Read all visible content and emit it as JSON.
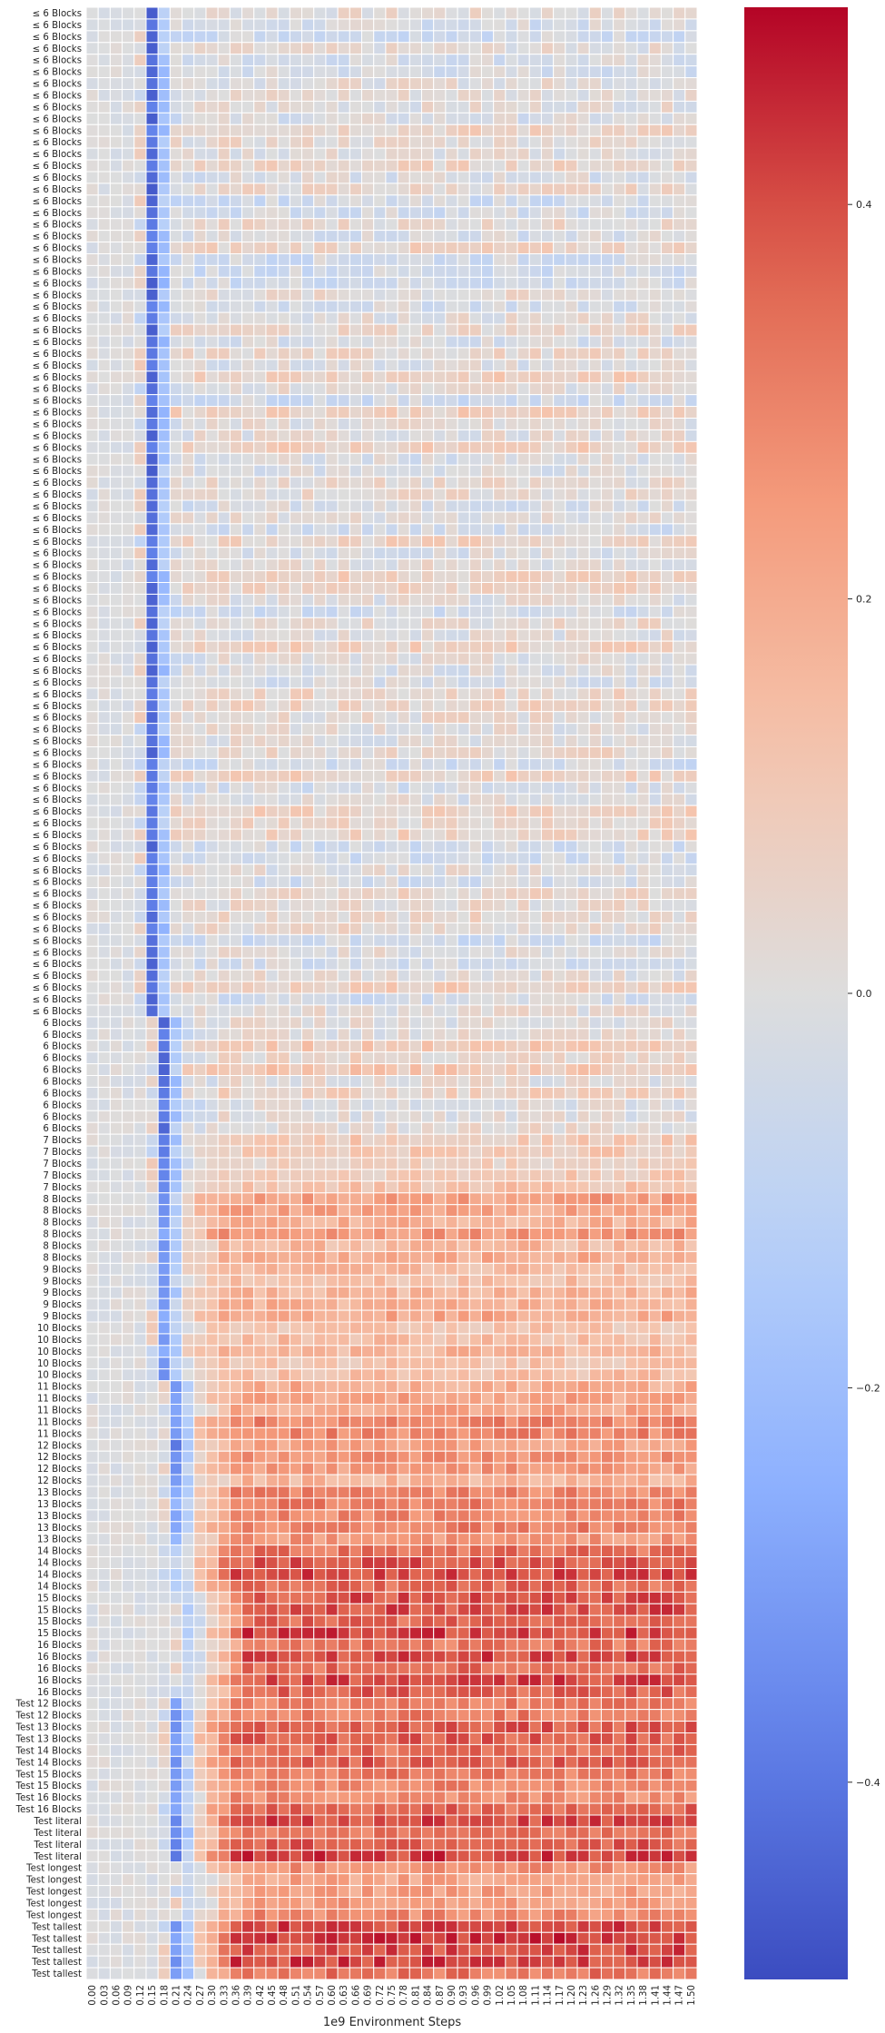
{
  "chart_data": {
    "type": "heatmap",
    "colormap": "coolwarm",
    "grid": true,
    "xlabel": "1e9 Environment Steps",
    "ylabel": "",
    "color_range": [
      -0.5,
      0.5
    ],
    "colorbar_ticks": [
      "0.4",
      "0.2",
      "0.0",
      "−0.2",
      "−0.4"
    ],
    "colorbar_tick_values": [
      0.4,
      0.2,
      0.0,
      -0.2,
      -0.4
    ],
    "x_categories": [
      "0.00",
      "0.03",
      "0.06",
      "0.09",
      "0.12",
      "0.15",
      "0.18",
      "0.21",
      "0.24",
      "0.27",
      "0.30",
      "0.33",
      "0.36",
      "0.39",
      "0.42",
      "0.45",
      "0.48",
      "0.51",
      "0.54",
      "0.57",
      "0.60",
      "0.63",
      "0.66",
      "0.69",
      "0.72",
      "0.75",
      "0.78",
      "0.81",
      "0.84",
      "0.87",
      "0.90",
      "0.93",
      "0.96",
      "0.99",
      "1.02",
      "1.05",
      "1.08",
      "1.11",
      "1.14",
      "1.17",
      "1.20",
      "1.23",
      "1.26",
      "1.29",
      "1.32",
      "1.35",
      "1.38",
      "1.41",
      "1.44",
      "1.47",
      "1.50"
    ],
    "row_groups": [
      {
        "label": "≤ 6 Blocks",
        "count": 86
      },
      {
        "label": "6 Blocks",
        "count": 10
      },
      {
        "label": "7 Blocks",
        "count": 5
      },
      {
        "label": "8 Blocks",
        "count": 6
      },
      {
        "label": "9 Blocks",
        "count": 5
      },
      {
        "label": "10 Blocks",
        "count": 5
      },
      {
        "label": "11 Blocks",
        "count": 5
      },
      {
        "label": "12 Blocks",
        "count": 4
      },
      {
        "label": "13 Blocks",
        "count": 5
      },
      {
        "label": "14 Blocks",
        "count": 4
      },
      {
        "label": "15 Blocks",
        "count": 4
      },
      {
        "label": "16 Blocks",
        "count": 5
      },
      {
        "label": "Test 12 Blocks",
        "count": 2
      },
      {
        "label": "Test 13 Blocks",
        "count": 2
      },
      {
        "label": "Test 14 Blocks",
        "count": 2
      },
      {
        "label": "Test 15 Blocks",
        "count": 2
      },
      {
        "label": "Test 16 Blocks",
        "count": 2
      },
      {
        "label": "Test literal",
        "count": 4
      },
      {
        "label": "Test longest",
        "count": 5
      },
      {
        "label": "Test tallest",
        "count": 5
      }
    ],
    "row_profiles": {
      "le6": {
        "dip_col": 5,
        "dip_value": -0.42,
        "rest_value": 0.02
      },
      "6": {
        "dip_col": 6,
        "dip_value": -0.4,
        "rest_value": 0.06
      },
      "7": {
        "dip_col": 6,
        "dip_value": -0.35,
        "rest_value": 0.12
      },
      "8": {
        "dip_col": 6,
        "dip_value": -0.3,
        "rest_value": 0.2
      },
      "9": {
        "dip_col": 6,
        "dip_value": -0.3,
        "rest_value": 0.16
      },
      "10": {
        "dip_col": 6,
        "dip_value": -0.3,
        "rest_value": 0.15
      },
      "11": {
        "dip_col": 7,
        "dip_value": -0.3,
        "rest_value": 0.25
      },
      "12": {
        "dip_col": 7,
        "dip_value": -0.35,
        "rest_value": 0.22
      },
      "13": {
        "dip_col": 7,
        "dip_value": -0.25,
        "rest_value": 0.3
      },
      "14": {
        "dip_col": 7,
        "dip_value": -0.1,
        "rest_value": 0.36
      },
      "15": {
        "dip_col": 8,
        "dip_value": -0.1,
        "rest_value": 0.38
      },
      "16": {
        "dip_col": 8,
        "dip_value": -0.08,
        "rest_value": 0.38
      },
      "test_blocks": {
        "dip_col": 7,
        "dip_value": -0.3,
        "rest_value": 0.33
      },
      "test_literal": {
        "dip_col": 7,
        "dip_value": -0.35,
        "rest_value": 0.38
      },
      "test_longest": {
        "dip_col": 8,
        "dip_value": -0.05,
        "rest_value": 0.25
      },
      "test_tallest": {
        "dip_col": 7,
        "dip_value": -0.3,
        "rest_value": 0.38
      }
    }
  }
}
